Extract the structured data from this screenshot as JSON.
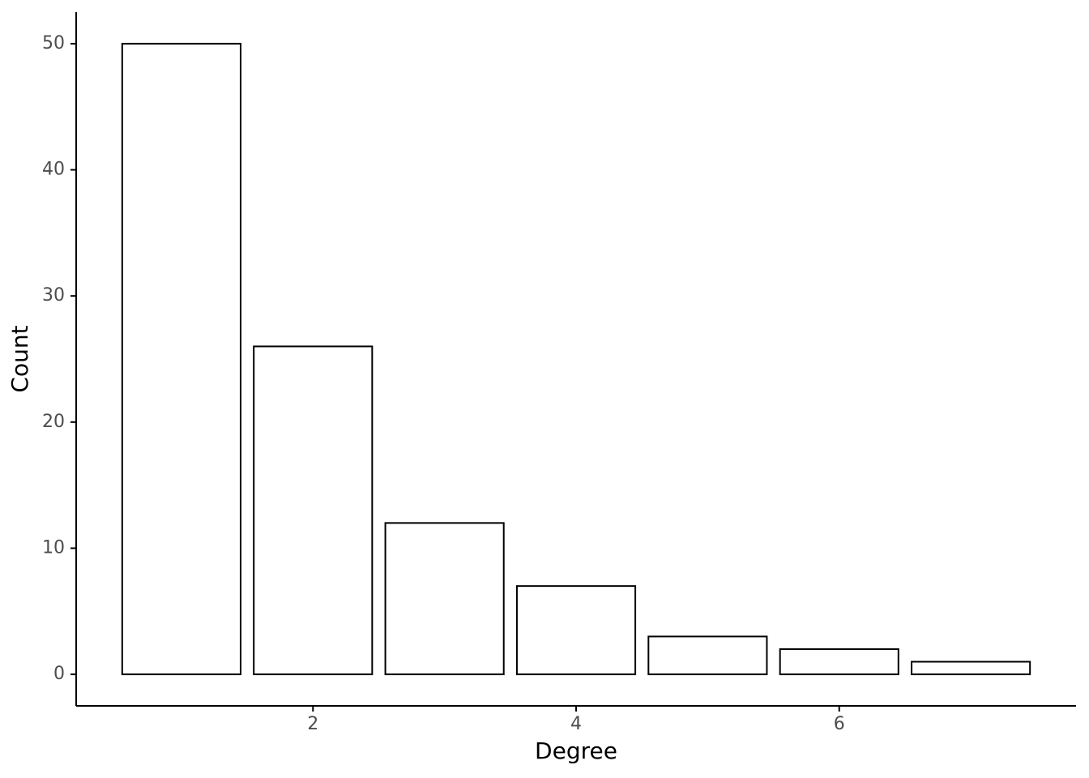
{
  "chart_data": {
    "type": "bar",
    "x": [
      1,
      2,
      3,
      4,
      5,
      6,
      7
    ],
    "values": [
      50,
      26,
      12,
      7,
      3,
      2,
      1
    ],
    "xlabel": "Degree",
    "ylabel": "Count",
    "color": "#ffffff",
    "edgecolor": "#000000",
    "xlim": [
      0.2,
      7.8
    ],
    "xticks": [
      2,
      4,
      6
    ],
    "ylim": [
      -2.5,
      52.5
    ],
    "yticks": [
      0,
      10,
      20,
      30,
      40,
      50
    ],
    "grid": false
  }
}
